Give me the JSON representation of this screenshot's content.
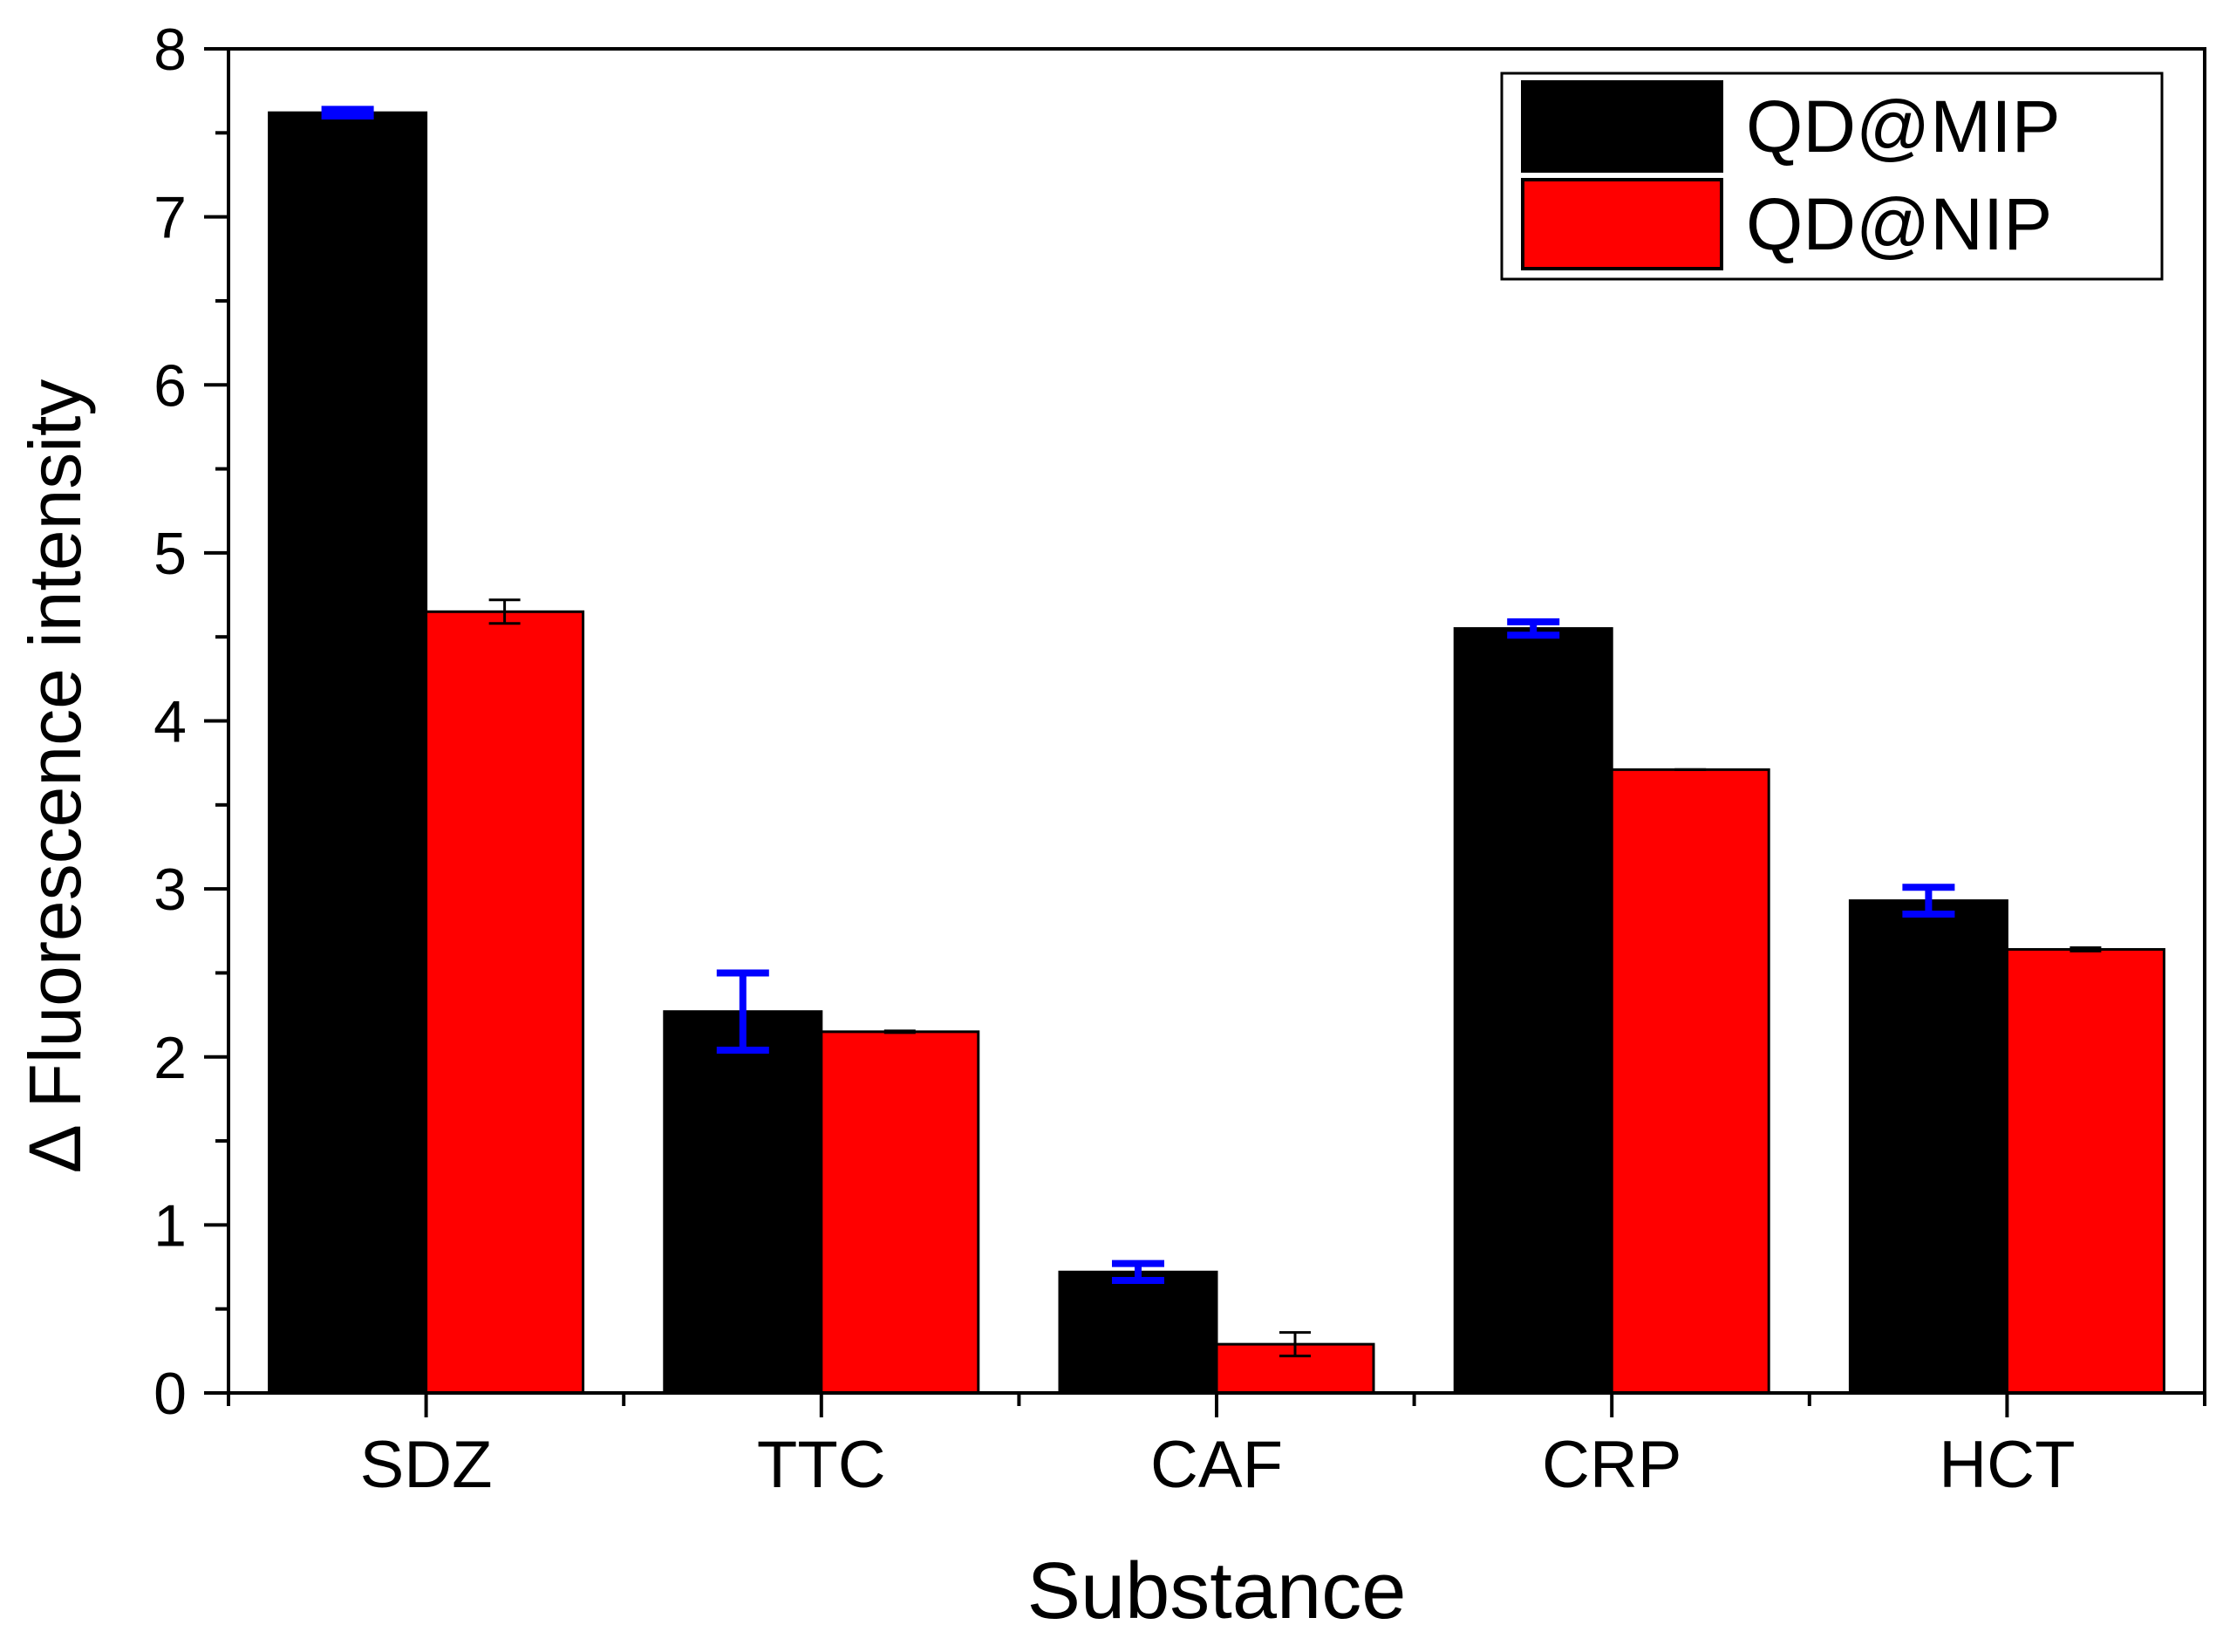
{
  "chart_data": {
    "type": "bar",
    "title": "",
    "xlabel": "Substance",
    "ylabel": "Δ Fluorescence intensity",
    "ylim": [
      0,
      8
    ],
    "yticks": [
      0,
      1,
      2,
      3,
      4,
      5,
      6,
      7,
      8
    ],
    "categories": [
      "SDZ",
      "TTC",
      "CAF",
      "CRP",
      "HCT"
    ],
    "series": [
      {
        "name": "QD@MIP",
        "color": "#000000",
        "error_color": "#0000ff",
        "values": [
          7.62,
          2.27,
          0.72,
          4.55,
          2.93
        ],
        "errors": [
          0.02,
          0.23,
          0.05,
          0.04,
          0.08
        ]
      },
      {
        "name": "QD@NIP",
        "color": "#ff0000",
        "error_color": "#000000",
        "values": [
          4.65,
          2.15,
          0.29,
          3.71,
          2.64
        ],
        "errors": [
          0.07,
          0.005,
          0.07,
          0.0,
          0.01
        ]
      }
    ],
    "legend": {
      "position": "top-right"
    },
    "grid": false
  }
}
